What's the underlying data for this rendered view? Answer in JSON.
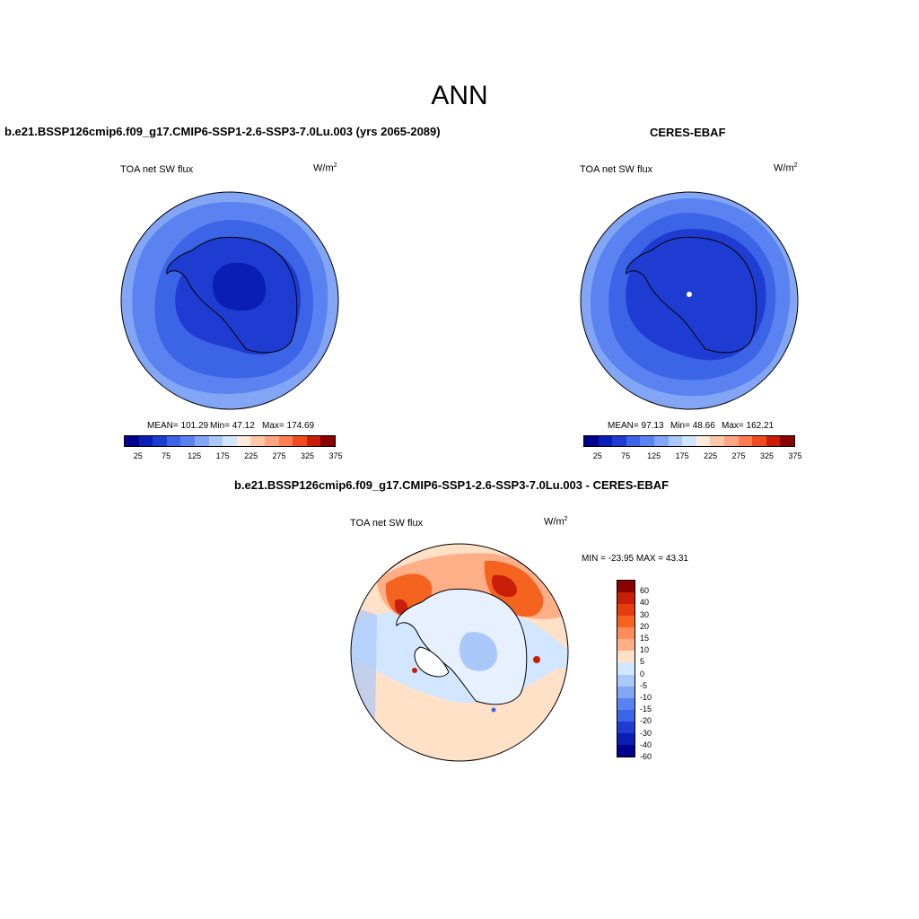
{
  "main_title": "ANN",
  "panels": [
    {
      "title": "b.e21.BSSP126cmip6.f09_g17.CMIP6-SSP1-2.6-SSP3-7.0Lu.003 (yrs 2065-2089)",
      "variable": "TOA net SW flux",
      "units_base": "W/m",
      "units_exp": "2",
      "stats_mean": "MEAN= 101.29",
      "stats_min": "Min=  47.12",
      "stats_max": "Max= 174.69"
    },
    {
      "title": "CERES-EBAF",
      "variable": "TOA net SW flux",
      "units_base": "W/m",
      "units_exp": "2",
      "stats_mean": "MEAN=  97.13",
      "stats_min": "Min=  48.66",
      "stats_max": "Max= 162.21"
    },
    {
      "title": "b.e21.BSSP126cmip6.f09_g17.CMIP6-SSP1-2.6-SSP3-7.0Lu.003 - CERES-EBAF",
      "variable": "TOA net SW flux",
      "units_base": "W/m",
      "units_exp": "2",
      "stats_minmax": "MIN = -23.95 MAX =  43.31"
    }
  ],
  "colorbar_abs": {
    "colors": [
      "#00008b",
      "#0a1eb4",
      "#1e3cd2",
      "#3c64e6",
      "#5a82f0",
      "#82a5f5",
      "#aac8fa",
      "#d2e6ff",
      "#ffebdc",
      "#ffc8aa",
      "#ffa582",
      "#ff7d50",
      "#f04b1e",
      "#c81e0a",
      "#8b0000"
    ],
    "tick_labels": [
      "25",
      "75",
      "125",
      "175",
      "225",
      "275",
      "325",
      "375"
    ]
  },
  "colorbar_diff": {
    "colors": [
      "#8b0000",
      "#c81e0a",
      "#e63c0f",
      "#f5641e",
      "#ff8c5a",
      "#ffaf87",
      "#ffe1c8",
      "#d2e6ff",
      "#aac8fa",
      "#82a5f5",
      "#5a82f0",
      "#3c64e6",
      "#1e3cd2",
      "#0a1eb4",
      "#00008b"
    ],
    "tick_labels": [
      "60",
      "40",
      "30",
      "20",
      "15",
      "10",
      "5",
      "0",
      "-5",
      "-10",
      "-15",
      "-20",
      "-30",
      "-40",
      "-60"
    ]
  }
}
